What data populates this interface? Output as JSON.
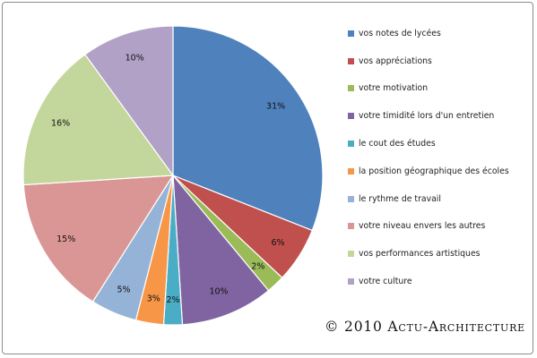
{
  "chart_data": {
    "type": "pie",
    "legend_position": "right",
    "slices": [
      {
        "label": "vos notes de lycées",
        "value": 31,
        "data_label": "31%",
        "color": "#4F81BD"
      },
      {
        "label": "vos appréciations",
        "value": 6,
        "data_label": "6%",
        "color": "#C0504D"
      },
      {
        "label": "votre motivation",
        "value": 2,
        "data_label": "2%",
        "color": "#9BBB59"
      },
      {
        "label": "votre timidité  lors d'un entretien",
        "value": 10,
        "data_label": "10%",
        "color": "#8064A2"
      },
      {
        "label": "le cout des études",
        "value": 2,
        "data_label": "2%",
        "color": "#4BACC6"
      },
      {
        "label": "la position  géographique des écoles",
        "value": 3,
        "data_label": "3%",
        "color": "#F79646"
      },
      {
        "label": "le rythme de travail",
        "value": 5,
        "data_label": "5%",
        "color": "#95B3D7"
      },
      {
        "label": "votre niveau envers les autres",
        "value": 15,
        "data_label": "15%",
        "color": "#DA9694"
      },
      {
        "label": "vos performances artistiques",
        "value": 16,
        "data_label": "16%",
        "color": "#C3D69B"
      },
      {
        "label": "votre culture",
        "value": 10,
        "data_label": "10%",
        "color": "#B2A1C7"
      }
    ]
  },
  "legend": {
    "items": [
      {
        "label": "vos notes de lycées",
        "color": "#4F81BD"
      },
      {
        "label": "vos appréciations",
        "color": "#C0504D"
      },
      {
        "label": "votre motivation",
        "color": "#9BBB59"
      },
      {
        "label": "votre timidité  lors d'un entretien",
        "color": "#8064A2"
      },
      {
        "label": "le cout des études",
        "color": "#4BACC6"
      },
      {
        "label": "la position  géographique des écoles",
        "color": "#F79646"
      },
      {
        "label": "le rythme de travail",
        "color": "#95B3D7"
      },
      {
        "label": "votre niveau envers les autres",
        "color": "#DA9694"
      },
      {
        "label": "vos performances artistiques",
        "color": "#C3D69B"
      },
      {
        "label": "votre culture",
        "color": "#B2A1C7"
      }
    ]
  },
  "watermark": "© 2010 Actu-Architecture"
}
